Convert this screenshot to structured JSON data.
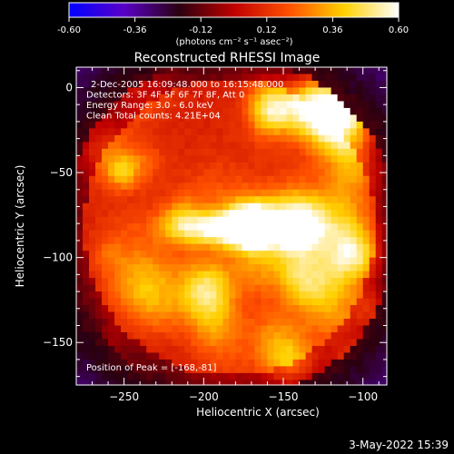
{
  "chart_data": {
    "type": "heatmap",
    "title": "Reconstructed RHESSI Image",
    "xlabel": "Heliocentric X (arcsec)",
    "ylabel": "Heliocentric Y (arcsec)",
    "xlim": [
      -280,
      -85
    ],
    "ylim": [
      -175,
      12
    ],
    "x_ticks": [
      -250,
      -200,
      -150,
      -100
    ],
    "y_ticks": [
      0,
      -50,
      -100,
      -150
    ],
    "colorbar": {
      "range": [
        -0.6,
        0.6
      ],
      "ticks": [
        "-0.60",
        "-0.36",
        "-0.12",
        "0.12",
        "0.36",
        "0.60"
      ],
      "units": "(photons cm⁻² s⁻¹ asec⁻²)",
      "colors": [
        "#0000ff",
        "#5a00c8",
        "#2a0010",
        "#c00000",
        "#ff5000",
        "#ffd000",
        "#ffffff"
      ]
    },
    "annotations": [
      "2-Dec-2005 16:09:48.000 to 16:15:48.000",
      "Detectors: 3F 4F 5F 6F 7F 8F, Att 0",
      "Energy Range: 3.0 - 6.0 keV",
      "Clean     Total counts: 4.21E+04"
    ],
    "peak_label": "Position of Peak = [-168,-81]",
    "peak": {
      "x": -168,
      "y": -81,
      "value": 0.6
    },
    "source_extent": {
      "x": [
        -275,
        -92
      ],
      "y": [
        -170,
        5
      ]
    }
  },
  "footer": {
    "timestamp": "3-May-2022 15:39"
  }
}
